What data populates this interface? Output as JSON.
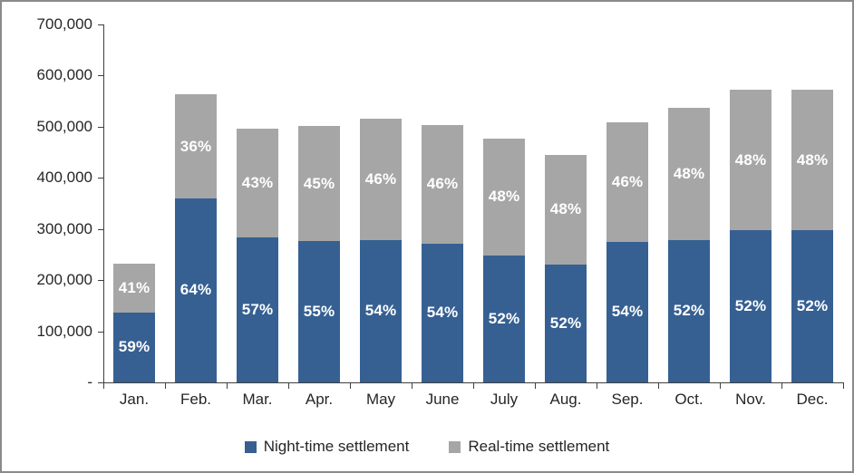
{
  "chart_data": {
    "type": "bar",
    "stacked": true,
    "title": "",
    "xlabel": "",
    "ylabel": "",
    "grid": false,
    "legend_position": "bottom",
    "ylim": [
      0,
      700000
    ],
    "y_tick_step": 100000,
    "y_tick_labels": [
      "-",
      "100,000",
      "200,000",
      "300,000",
      "400,000",
      "500,000",
      "600,000",
      "700,000"
    ],
    "categories": [
      "Jan.",
      "Feb.",
      "Mar.",
      "Apr.",
      "May",
      "June",
      "July",
      "Aug.",
      "Sep.",
      "Oct.",
      "Nov.",
      "Dec."
    ],
    "series": [
      {
        "name": "Night-time settlement",
        "color": "#366092",
        "values": [
          137000,
          360000,
          283000,
          276000,
          279000,
          272000,
          248000,
          231000,
          275000,
          279000,
          297000,
          297000
        ],
        "percent_labels": [
          "59%",
          "64%",
          "57%",
          "55%",
          "54%",
          "54%",
          "52%",
          "52%",
          "54%",
          "52%",
          "52%",
          "52%"
        ]
      },
      {
        "name": "Real-time settlement",
        "color": "#a6a6a6",
        "values": [
          96000,
          203000,
          214000,
          225000,
          237000,
          232000,
          229000,
          214000,
          234000,
          258000,
          275000,
          275000
        ],
        "percent_labels": [
          "41%",
          "36%",
          "43%",
          "45%",
          "46%",
          "46%",
          "48%",
          "48%",
          "46%",
          "48%",
          "48%",
          "48%"
        ]
      }
    ],
    "totals": [
      233000,
      563000,
      497000,
      501000,
      516000,
      504000,
      477000,
      445000,
      509000,
      537000,
      572000,
      572000
    ],
    "colors": {
      "axis": "#3f3f3f",
      "text": "#262626",
      "frame_border": "#8a8a8a",
      "background": "#ffffff"
    }
  }
}
